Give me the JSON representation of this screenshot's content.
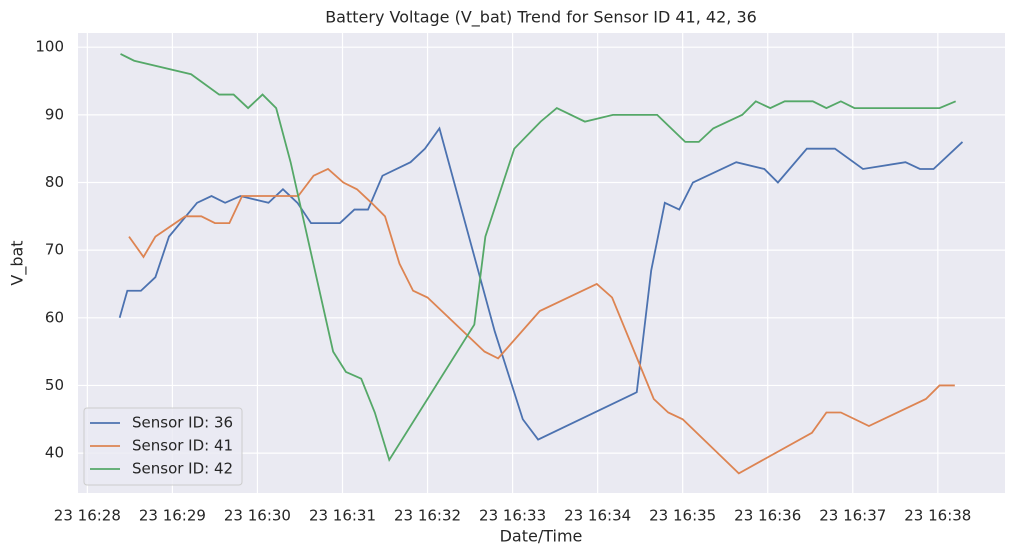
{
  "chart_data": {
    "type": "line",
    "title": "Battery Voltage (V_bat) Trend for Sensor ID 41, 42, 36",
    "x_label": "Date/Time",
    "y_label": "V_bat",
    "xlim": [
      27.89,
      38.79
    ],
    "ylim": [
      34.1,
      102.1
    ],
    "xticks": [
      {
        "value": 28,
        "label": "23 16:28"
      },
      {
        "value": 29,
        "label": "23 16:29"
      },
      {
        "value": 30,
        "label": "23 16:30"
      },
      {
        "value": 31,
        "label": "23 16:31"
      },
      {
        "value": 32,
        "label": "23 16:32"
      },
      {
        "value": 33,
        "label": "23 16:33"
      },
      {
        "value": 34,
        "label": "23 16:34"
      },
      {
        "value": 35,
        "label": "23 16:35"
      },
      {
        "value": 36,
        "label": "23 16:36"
      },
      {
        "value": 37,
        "label": "23 16:37"
      },
      {
        "value": 38,
        "label": "23 16:38"
      }
    ],
    "yticks": [
      40,
      50,
      60,
      70,
      80,
      90,
      100
    ],
    "grid": true,
    "legend_position": "lower left",
    "series": [
      {
        "name": "Sensor ID: 36",
        "color": "#4c72b0",
        "x": [
          28.38,
          28.47,
          28.63,
          28.8,
          28.96,
          29.29,
          29.46,
          29.62,
          29.8,
          30.13,
          30.3,
          30.47,
          30.63,
          30.97,
          31.14,
          31.3,
          31.47,
          31.8,
          31.97,
          32.14,
          32.79,
          33.12,
          33.3,
          34.46,
          34.63,
          34.79,
          34.96,
          35.12,
          35.63,
          35.96,
          36.12,
          36.46,
          36.79,
          37.12,
          37.62,
          37.79,
          37.95,
          38.29
        ],
        "values": [
          60,
          64,
          64,
          66,
          72,
          77,
          78,
          77,
          78,
          77,
          79,
          77,
          74,
          74,
          76,
          76,
          81,
          83,
          85,
          88,
          58,
          45,
          42,
          49,
          67,
          77,
          76,
          80,
          83,
          82,
          80,
          85,
          85,
          82,
          83,
          82,
          82,
          86
        ]
      },
      {
        "name": "Sensor ID: 41",
        "color": "#dd8452",
        "x": [
          28.49,
          28.66,
          28.8,
          29.15,
          29.34,
          29.5,
          29.67,
          29.82,
          30.48,
          30.66,
          30.83,
          31.01,
          31.17,
          31.34,
          31.5,
          31.67,
          31.83,
          32.0,
          32.67,
          32.83,
          33.32,
          33.99,
          34.17,
          34.66,
          34.83,
          35.0,
          35.66,
          36.52,
          36.69,
          36.86,
          37.19,
          37.86,
          38.02,
          38.2
        ],
        "values": [
          72,
          69,
          72,
          75,
          75,
          74,
          74,
          78,
          78,
          81,
          82,
          80,
          79,
          77,
          75,
          68,
          64,
          63,
          55,
          54,
          61,
          65,
          63,
          48,
          46,
          45,
          37,
          43,
          46,
          46,
          44,
          48,
          50,
          50
        ]
      },
      {
        "name": "Sensor ID: 42",
        "color": "#55a868",
        "x": [
          28.39,
          28.55,
          29.22,
          29.55,
          29.72,
          29.89,
          30.06,
          30.22,
          30.39,
          30.89,
          31.04,
          31.22,
          31.38,
          31.55,
          32.55,
          32.68,
          33.02,
          33.33,
          33.52,
          33.85,
          34.18,
          34.7,
          35.03,
          35.19,
          35.36,
          35.7,
          35.86,
          36.03,
          36.2,
          36.53,
          36.69,
          36.86,
          37.02,
          38.02,
          38.21
        ],
        "values": [
          99,
          98,
          96,
          93,
          93,
          91,
          93,
          91,
          83,
          55,
          52,
          51,
          46,
          39,
          59,
          72,
          85,
          89,
          91,
          89,
          90,
          90,
          86,
          86,
          88,
          90,
          92,
          91,
          92,
          92,
          91,
          92,
          91,
          91,
          92
        ]
      }
    ]
  }
}
